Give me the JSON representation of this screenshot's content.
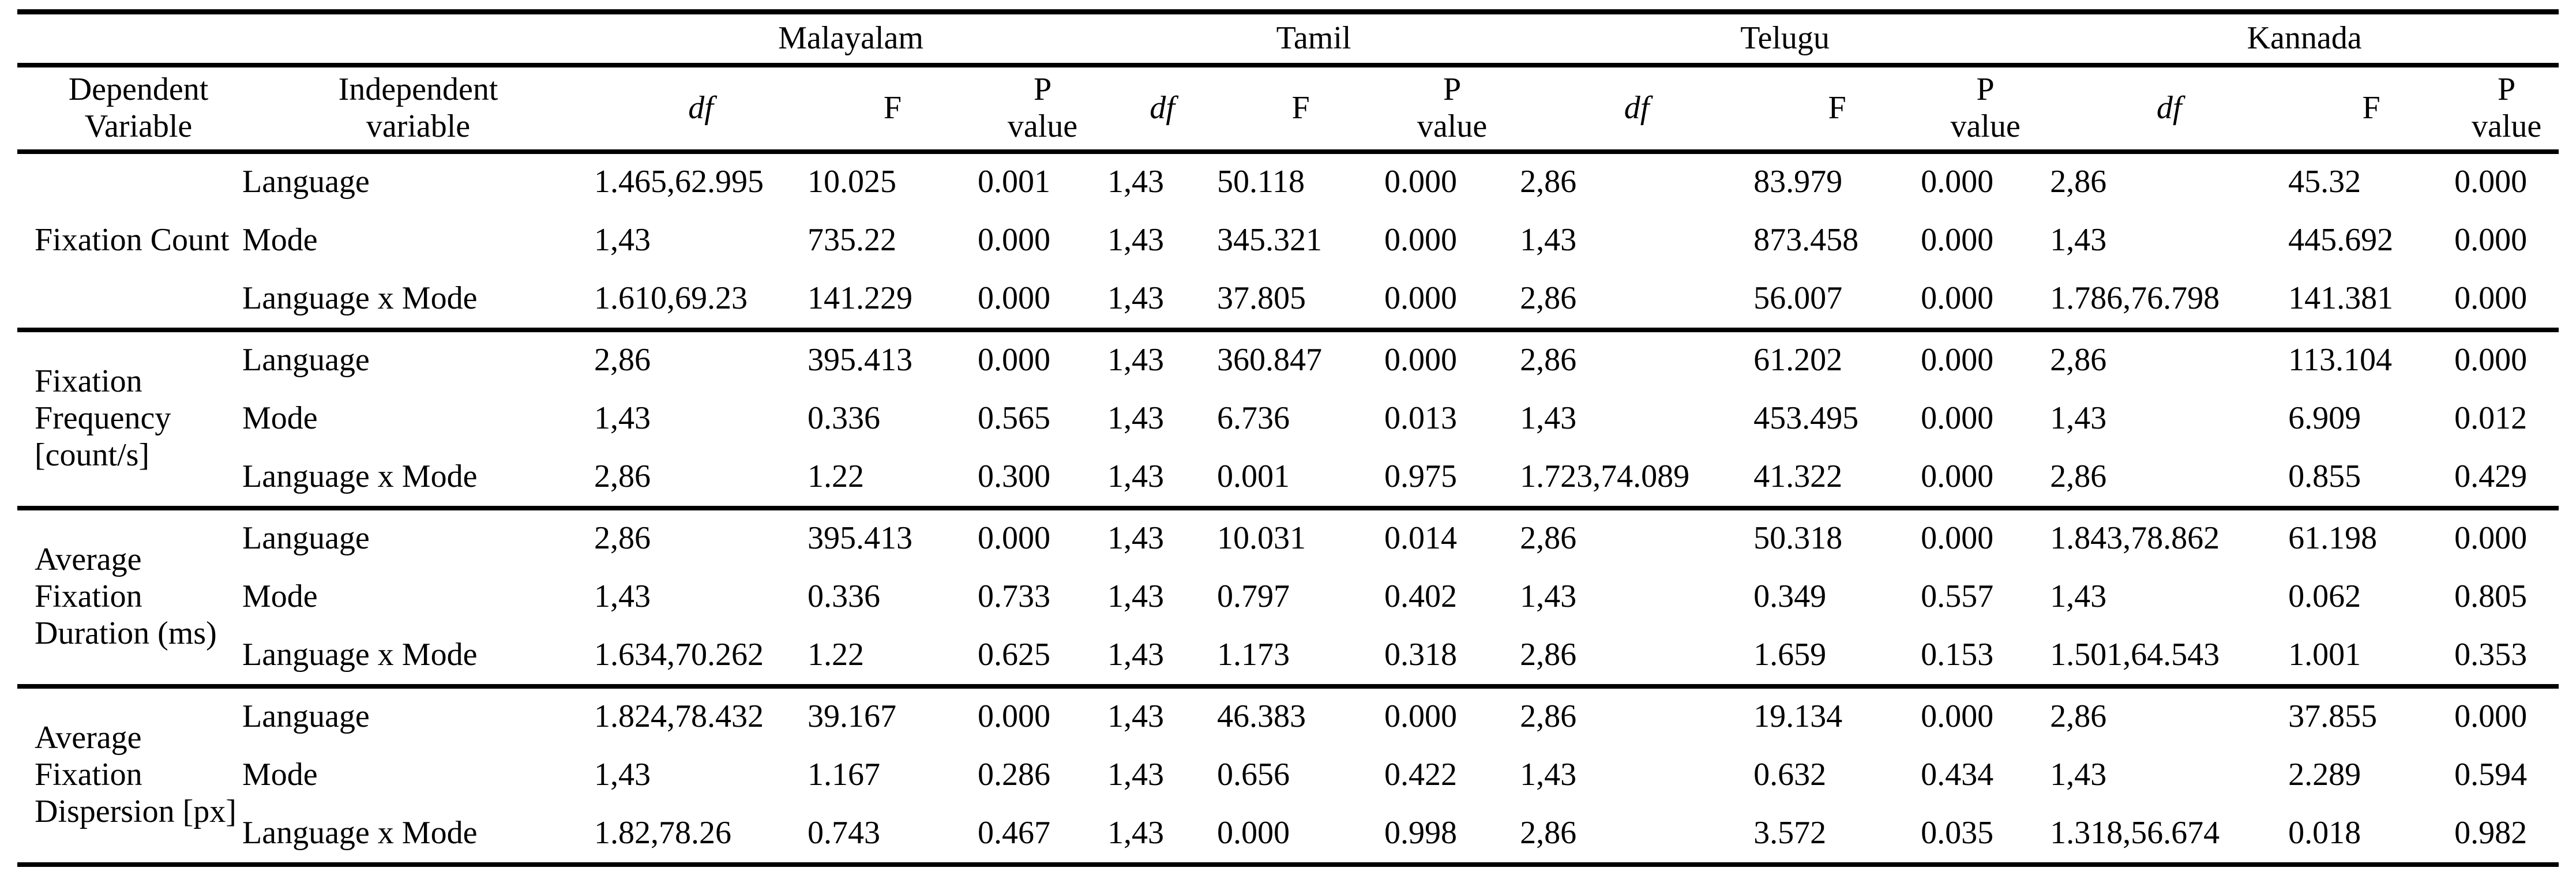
{
  "table": {
    "headers": {
      "dependent_variable": "Dependent\nVariable",
      "independent_variable": "Independent\nvariable",
      "df": "df",
      "f": "F",
      "p_value": "P\nvalue"
    },
    "language_groups": [
      "Malayalam",
      "Tamil",
      "Telugu",
      "Kannada"
    ],
    "row_groups": [
      {
        "dependent_variable": "Fixation Count",
        "rows": [
          {
            "independent_variable": "Language",
            "cells": [
              "1.465,62.995",
              "10.025",
              "0.001",
              "1,43",
              "50.118",
              "0.000",
              "2,86",
              "83.979",
              "0.000",
              "2,86",
              "45.32",
              "0.000"
            ]
          },
          {
            "independent_variable": "Mode",
            "cells": [
              "1,43",
              "735.22",
              "0.000",
              "1,43",
              "345.321",
              "0.000",
              "1,43",
              "873.458",
              "0.000",
              "1,43",
              "445.692",
              "0.000"
            ]
          },
          {
            "independent_variable": "Language x Mode",
            "cells": [
              "1.610,69.23",
              "141.229",
              "0.000",
              "1,43",
              "37.805",
              "0.000",
              "2,86",
              "56.007",
              "0.000",
              "1.786,76.798",
              "141.381",
              "0.000"
            ]
          }
        ]
      },
      {
        "dependent_variable": "Fixation Frequency [count/s]",
        "rows": [
          {
            "independent_variable": "Language",
            "cells": [
              "2,86",
              "395.413",
              "0.000",
              "1,43",
              "360.847",
              "0.000",
              "2,86",
              "61.202",
              "0.000",
              "2,86",
              "113.104",
              "0.000"
            ]
          },
          {
            "independent_variable": "Mode",
            "cells": [
              "1,43",
              "0.336",
              "0.565",
              "1,43",
              "6.736",
              "0.013",
              "1,43",
              "453.495",
              "0.000",
              "1,43",
              "6.909",
              "0.012"
            ]
          },
          {
            "independent_variable": "Language x Mode",
            "cells": [
              "2,86",
              "1.22",
              "0.300",
              "1,43",
              "0.001",
              "0.975",
              "1.723,74.089",
              "41.322",
              "0.000",
              "2,86",
              "0.855",
              "0.429"
            ]
          }
        ]
      },
      {
        "dependent_variable": "Average Fixation Duration (ms)",
        "rows": [
          {
            "independent_variable": "Language",
            "cells": [
              "2,86",
              "395.413",
              "0.000",
              "1,43",
              "10.031",
              "0.014",
              "2,86",
              "50.318",
              "0.000",
              "1.843,78.862",
              "61.198",
              "0.000"
            ]
          },
          {
            "independent_variable": "Mode",
            "cells": [
              "1,43",
              "0.336",
              "0.733",
              "1,43",
              "0.797",
              "0.402",
              "1,43",
              "0.349",
              "0.557",
              "1,43",
              "0.062",
              "0.805"
            ]
          },
          {
            "independent_variable": "Language x Mode",
            "cells": [
              "1.634,70.262",
              "1.22",
              "0.625",
              "1,43",
              "1.173",
              "0.318",
              "2,86",
              "1.659",
              "0.153",
              "1.501,64.543",
              "1.001",
              "0.353"
            ]
          }
        ]
      },
      {
        "dependent_variable": "Average Fixation Dispersion [px]",
        "rows": [
          {
            "independent_variable": "Language",
            "cells": [
              "1.824,78.432",
              "39.167",
              "0.000",
              "1,43",
              "46.383",
              "0.000",
              "2,86",
              "19.134",
              "0.000",
              "2,86",
              "37.855",
              "0.000"
            ]
          },
          {
            "independent_variable": "Mode",
            "cells": [
              "1,43",
              "1.167",
              "0.286",
              "1,43",
              "0.656",
              "0.422",
              "1,43",
              "0.632",
              "0.434",
              "1,43",
              "2.289",
              "0.594"
            ]
          },
          {
            "independent_variable": "Language x Mode",
            "cells": [
              "1.82,78.26",
              "0.743",
              "0.467",
              "1,43",
              "0.000",
              "0.998",
              "2,86",
              "3.572",
              "0.035",
              "1.318,56.674",
              "0.018",
              "0.982"
            ]
          }
        ]
      }
    ]
  }
}
